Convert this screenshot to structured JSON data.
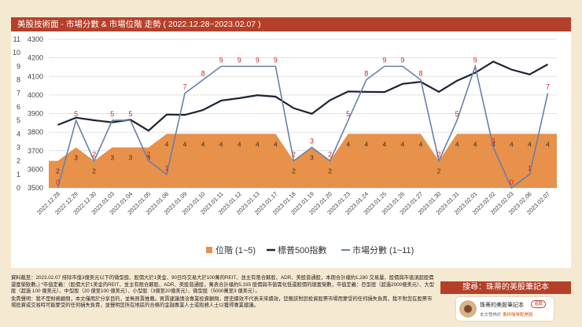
{
  "header": {
    "title": "美股技術面 - 市場分數 & 市場位階 走勢 ( 2022.12.28~2023.02.07 )"
  },
  "chart_data": {
    "type": "line",
    "categories": [
      "2022.12.28",
      "2022.12.29",
      "2022.12.30",
      "2023.01.03",
      "2023.01.04",
      "2023.01.05",
      "2023.01.06",
      "2023.01.09",
      "2023.01.10",
      "2023.01.11",
      "2023.01.12",
      "2023.01.13",
      "2023.01.17",
      "2023.01.18",
      "2023.01.19",
      "2023.01.20",
      "2023.01.23",
      "2023.01.24",
      "2023.01.25",
      "2023.01.26",
      "2023.01.27",
      "2023.01.30",
      "2023.01.31",
      "2023.02.01",
      "2023.02.02",
      "2023.02.03",
      "2023.02.06",
      "2023.02.07"
    ],
    "series": [
      {
        "name": "位階 (1~5)",
        "type": "area",
        "axis": "left",
        "color": "#e8914a",
        "values": [
          2,
          3,
          2,
          3,
          3,
          3,
          4,
          4,
          4,
          4,
          4,
          4,
          4,
          2,
          3,
          2,
          4,
          4,
          4,
          4,
          4,
          2,
          4,
          4,
          4,
          4,
          4,
          4
        ]
      },
      {
        "name": "標普500指數",
        "type": "line",
        "axis": "right",
        "color": "#1c2433",
        "values": [
          3839,
          3878,
          3864,
          3853,
          3867,
          3808,
          3895,
          3893,
          3919,
          3970,
          3983,
          3999,
          3991,
          3929,
          3899,
          3972,
          4019,
          4017,
          4016,
          4060,
          4071,
          4017,
          4077,
          4120,
          4180,
          4137,
          4111,
          4165
        ]
      },
      {
        "name": "市場分數 (1~11)",
        "type": "line",
        "axis": "left",
        "color": "#6a7fa8",
        "values": [
          0,
          5,
          2,
          5,
          5,
          2,
          1,
          7,
          8,
          9,
          9,
          9,
          9,
          2,
          3,
          2,
          5,
          8,
          9,
          9,
          8,
          2,
          5,
          9,
          3,
          0,
          1,
          7
        ]
      }
    ],
    "score_labels": [
      "0",
      "5",
      "2",
      "5",
      "5",
      "2",
      "1",
      "7",
      "8",
      "9",
      "9",
      "9",
      "9",
      "2",
      "3",
      "2",
      "5",
      "8",
      "9",
      "9",
      "8",
      "2",
      "5",
      "9",
      "3",
      "0",
      "1",
      "7"
    ],
    "level_labels": [
      "2",
      "3",
      "2",
      "3",
      "3",
      "3",
      "4",
      "4",
      "4",
      "4",
      "4",
      "4",
      "4",
      "2",
      "3",
      "2",
      "4",
      "4",
      "4",
      "4",
      "4",
      "2",
      "4",
      "4",
      "4",
      "4",
      "4",
      "4"
    ],
    "left_axis": {
      "ticks": [
        "0",
        "1",
        "2",
        "3",
        "4",
        "5",
        "6",
        "7",
        "8",
        "9",
        "10",
        "11"
      ],
      "range": [
        0,
        11
      ]
    },
    "right_axis": {
      "ticks": [
        "3500",
        "3600",
        "3700",
        "3800",
        "3900",
        "4000",
        "4100",
        "4200",
        "4300"
      ],
      "range": [
        3500,
        4300
      ]
    },
    "legend": [
      "位階 (1~5)",
      "標普500指數",
      "市場分數 (1~11)"
    ]
  },
  "footer": {
    "source": "資料截至：2023.02.07 排除市值3億美元以下的微型股、股價大於1美金、90日均交易大於100萬的REIT、並主有限合夥股、ADR、美股普通股，本期合計樣約1,280 交易量、股價與市值須超股價還富榮歐數。) *市值定義：（股價大於1美金的REIT、並主有限合夥股、ADR、美股普通股，萬表合計樣約5,335 股價與市值需化低還股價的總富榮數，市值定義：巨型股（超過2000億美元）、大型股（超過 100 億美元）、中型股（20 億至100 億美元）、小型股（3億至20億美元）、微型股（5000萬至3 億美元）。",
    "disclaimer": "免責聲明：我不是財務顧問，本文僅用於分享目的，並無買賣推薦。買賣建議請洽專業投資顧問，歷史績效不代表未來績效，您應該對因投資股票市場而蒙受的任何損失負責，我不對您在股票市場投資或交易時可能蒙受的任何損失負責，並聲明您所在地區的合格的金融專業人士或稅務人士以獲得專業建議。"
  },
  "search_banner": "搜尋：珠蒂的美股筆記本",
  "author": {
    "name": "珠蒂的美股筆記本",
    "badge": "追蹤",
    "note_prefix": "本文發佈於",
    "note_link": "東杯咖啡配美股"
  }
}
